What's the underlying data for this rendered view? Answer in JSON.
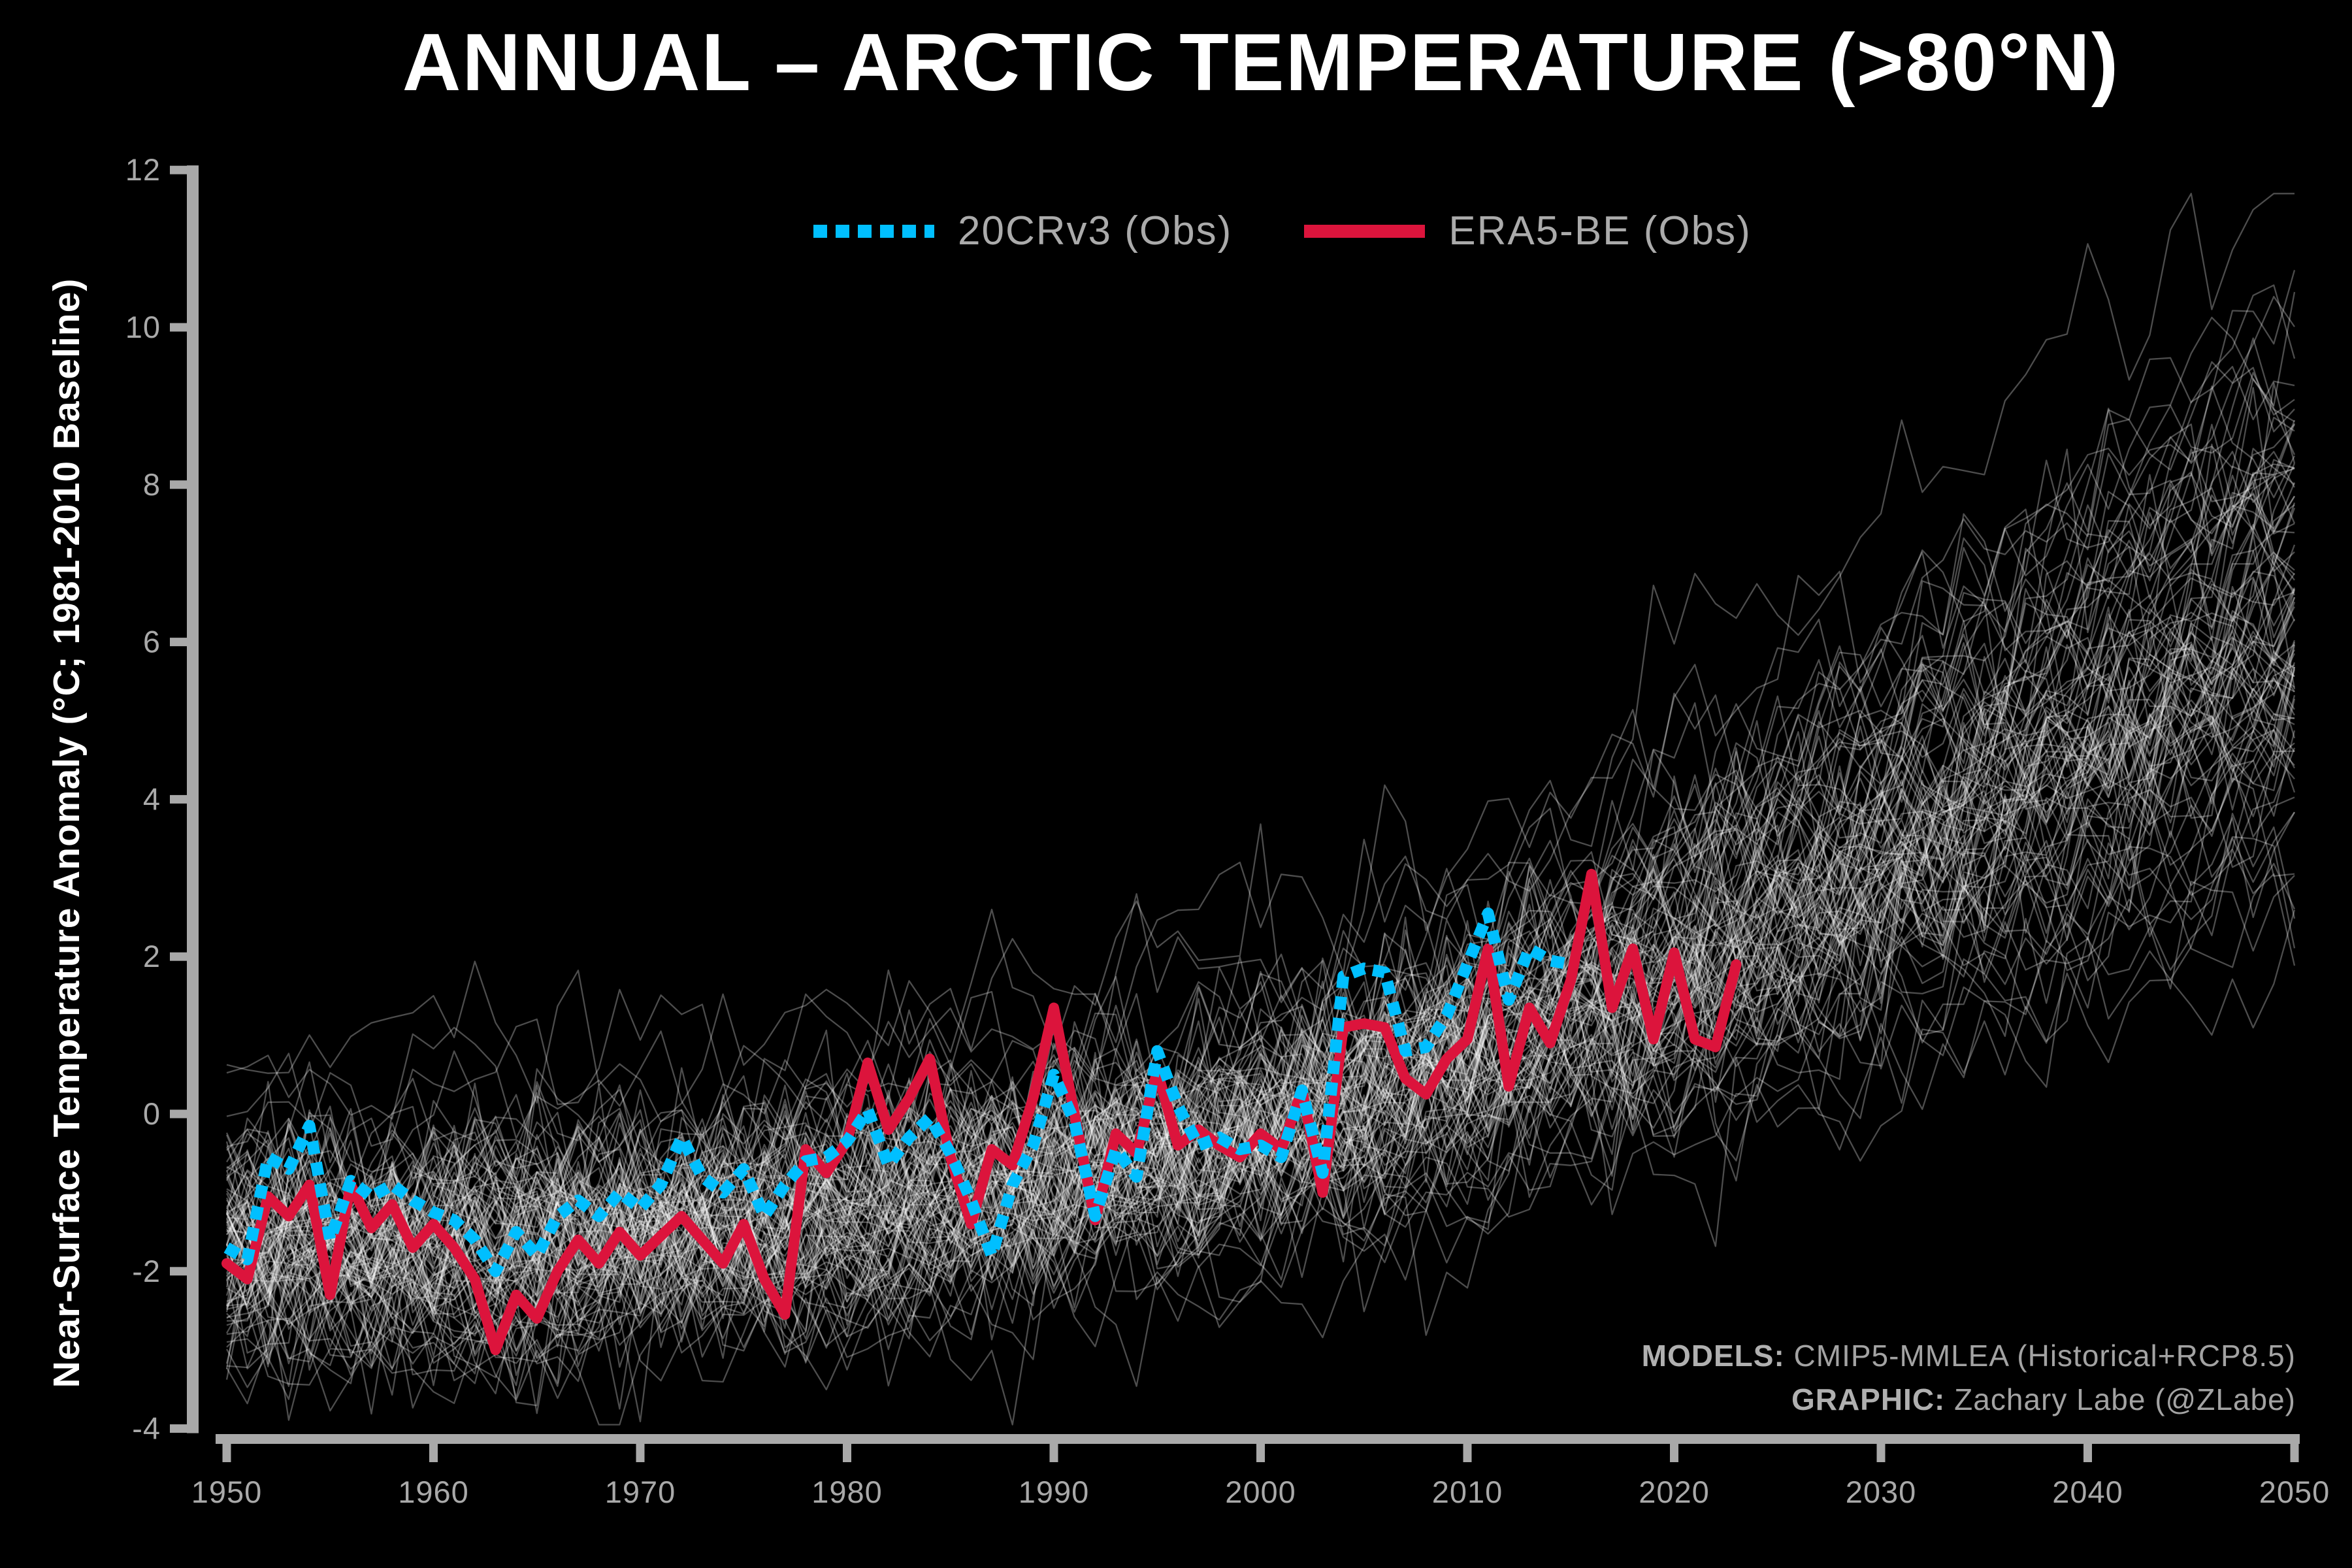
{
  "title": "ANNUAL – ARCTIC TEMPERATURE (>80°N)",
  "axes": {
    "y_label": "Near-Surface Temperature Anomaly (°C; 1981-2010 Baseline)",
    "x_label": "",
    "x_ticks": [
      1950,
      1960,
      1970,
      1980,
      1990,
      2000,
      2010,
      2020,
      2030,
      2040,
      2050
    ],
    "y_ticks": [
      -4,
      -2,
      0,
      2,
      4,
      6,
      8,
      10,
      12
    ],
    "x_range": [
      1950,
      2050
    ],
    "y_range": [
      -4,
      12
    ],
    "tick_color": "#a9a9a9",
    "spine_color": "#a9a9a9"
  },
  "legend": {
    "items": [
      {
        "label": "20CRv3 (Obs)",
        "color": "#00BFFF",
        "style": "dashed"
      },
      {
        "label": "ERA5-BE (Obs)",
        "color": "#DC143C",
        "style": "solid"
      }
    ]
  },
  "credits": {
    "models_label": "MODELS:",
    "models_value": " CMIP5-MMLEA (Historical+RCP8.5)",
    "graphic_label": "GRAPHIC:",
    "graphic_value": " Zachary Labe (@ZLabe)"
  },
  "colors": {
    "background": "#000000",
    "title": "#ffffff",
    "ensemble_line": "#ffffff",
    "obs_20crv3": "#00BFFF",
    "obs_era5be": "#DC143C",
    "tick_text": "#a9a9a9"
  },
  "chart_data": {
    "type": "line",
    "title": "ANNUAL – ARCTIC TEMPERATURE (>80°N)",
    "xlabel": "",
    "ylabel": "Near-Surface Temperature Anomaly (°C; 1981-2010 Baseline)",
    "xlim": [
      1950,
      2050
    ],
    "ylim": [
      -4,
      12
    ],
    "grid": false,
    "legend_position": "top-center",
    "series": [
      {
        "name": "20CRv3 (Obs)",
        "color": "#00BFFF",
        "style": "dashed",
        "linewidth": 18,
        "start_year": 1950,
        "end_year": 2015,
        "values": [
          -1.7,
          -1.85,
          -0.55,
          -0.7,
          -0.15,
          -1.6,
          -0.85,
          -1.05,
          -0.9,
          -1.1,
          -1.25,
          -1.35,
          -1.6,
          -2.0,
          -1.5,
          -1.8,
          -1.3,
          -1.1,
          -1.3,
          -1.0,
          -1.2,
          -0.9,
          -0.3,
          -0.8,
          -1.0,
          -0.7,
          -1.3,
          -0.9,
          -0.6,
          -0.55,
          -0.35,
          0.05,
          -0.65,
          -0.3,
          -0.05,
          -0.5,
          -1.1,
          -1.8,
          -0.9,
          -0.4,
          0.5,
          -0.1,
          -1.3,
          -0.45,
          -0.8,
          0.8,
          0.1,
          -0.4,
          -0.3,
          -0.45,
          -0.4,
          -0.55,
          0.3,
          -0.75,
          1.75,
          1.85,
          1.8,
          0.8,
          0.85,
          1.25,
          1.9,
          2.55,
          1.45,
          2.1,
          1.95,
          1.9
        ]
      },
      {
        "name": "ERA5-BE (Obs)",
        "color": "#DC143C",
        "style": "solid",
        "linewidth": 16,
        "start_year": 1950,
        "end_year": 2023,
        "values": [
          -1.9,
          -2.1,
          -1.05,
          -1.3,
          -0.9,
          -2.3,
          -0.9,
          -1.45,
          -1.15,
          -1.7,
          -1.4,
          -1.7,
          -2.1,
          -3.0,
          -2.3,
          -2.6,
          -2.0,
          -1.6,
          -1.9,
          -1.5,
          -1.8,
          -1.55,
          -1.3,
          -1.6,
          -1.9,
          -1.4,
          -2.1,
          -2.55,
          -0.45,
          -0.75,
          -0.35,
          0.65,
          -0.2,
          0.2,
          0.7,
          -0.55,
          -1.4,
          -0.45,
          -0.65,
          0.2,
          1.35,
          0.0,
          -1.35,
          -0.25,
          -0.5,
          0.55,
          -0.4,
          -0.2,
          -0.4,
          -0.55,
          -0.25,
          -0.45,
          0.3,
          -1.0,
          1.1,
          1.15,
          1.1,
          0.45,
          0.25,
          0.7,
          0.95,
          2.1,
          0.35,
          1.35,
          0.9,
          1.7,
          3.05,
          1.35,
          2.1,
          0.95,
          2.05,
          0.95,
          0.85,
          1.9
        ]
      }
    ],
    "ensemble": {
      "name": "CMIP5-MMLEA (Historical+RCP8.5)",
      "members": 95,
      "color": "#ffffff",
      "opacity": 0.3,
      "linewidth": 2.3,
      "start_year": 1950,
      "end_year": 2050,
      "mean_anchor_years": [
        1950,
        1960,
        1970,
        1980,
        1990,
        1995,
        2000,
        2005,
        2010,
        2015,
        2020,
        2025,
        2030,
        2035,
        2040,
        2045,
        2050
      ],
      "mean_anchor_values": [
        -1.6,
        -1.55,
        -1.45,
        -1.15,
        -0.7,
        -0.4,
        -0.05,
        0.35,
        0.85,
        1.45,
        2.1,
        2.8,
        3.5,
        4.25,
        5.0,
        5.85,
        6.6
      ],
      "envelope_1950": [
        -3.8,
        0.5
      ],
      "envelope_2050": [
        2.0,
        11.5
      ],
      "seed": 42
    }
  }
}
